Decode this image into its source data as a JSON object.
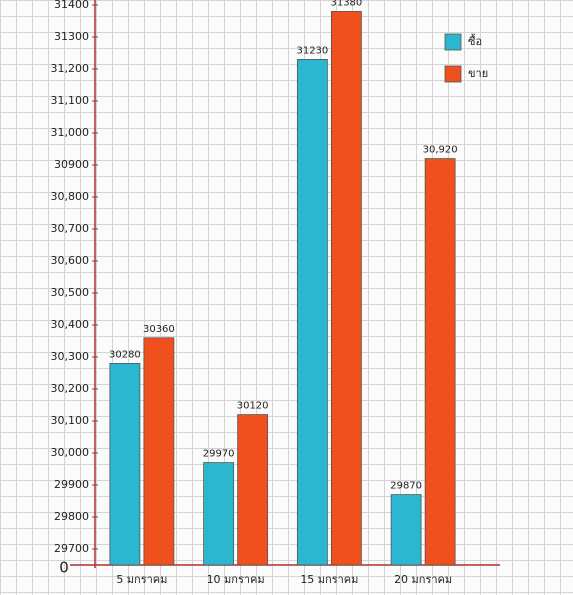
{
  "chart_data": {
    "type": "bar",
    "categories": [
      "5 มกราคม",
      "10 มกราคม",
      "15 มกราคม",
      "20 มกราคม"
    ],
    "series": [
      {
        "name": "ซื้อ",
        "color": "#2bb7cf",
        "values": [
          30280,
          29970,
          31230,
          29870
        ]
      },
      {
        "name": "ขาย",
        "color": "#f0501e",
        "values": [
          30360,
          30120,
          31380,
          30920
        ],
        "value_labels": [
          "30360",
          "30120",
          "31380",
          "30,920"
        ]
      }
    ],
    "ylim": [
      29650,
      31400
    ],
    "yticks": [
      29700,
      29800,
      29900,
      {
        "value": 30000,
        "label": "30,000"
      },
      {
        "value": 30100,
        "label": "30,100"
      },
      {
        "value": 30200,
        "label": "30,200"
      },
      {
        "value": 30300,
        "label": "30,300"
      },
      {
        "value": 30400,
        "label": "30,400"
      },
      {
        "value": 30500,
        "label": "30,500"
      },
      {
        "value": 30600,
        "label": "30,600"
      },
      {
        "value": 30700,
        "label": "30,700"
      },
      {
        "value": 30800,
        "label": "30,800"
      },
      30900,
      {
        "value": 31000,
        "label": "31,000"
      },
      {
        "value": 31100,
        "label": "31,100"
      },
      {
        "value": 31200,
        "label": "31,200"
      },
      31300,
      31400
    ],
    "y_origin_label": "0",
    "legend": "top-right"
  }
}
